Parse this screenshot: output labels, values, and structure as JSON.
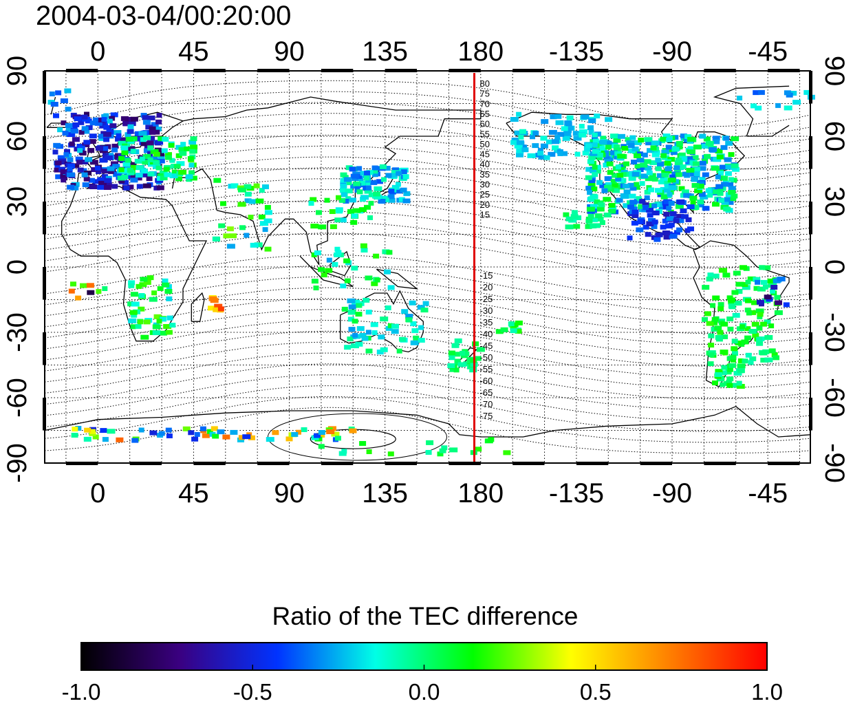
{
  "title": "2004-03-04/00:20:00",
  "colorbar": {
    "label": "Ratio of the TEC difference",
    "ticks": [
      "-1.0",
      "-0.5",
      "0.0",
      "0.5",
      "1.0"
    ],
    "values": [
      -1.0,
      -0.5,
      0.0,
      0.5,
      1.0
    ],
    "colormap": [
      "#000000",
      "#3a0080",
      "#0033ff",
      "#00ffe6",
      "#00ff00",
      "#ffff00",
      "#ff8000",
      "#ff0000"
    ]
  },
  "map": {
    "lon_range": [
      -25,
      335
    ],
    "lat_range": [
      -90,
      90
    ],
    "top_lon_labels": [
      "0",
      "45",
      "90",
      "135",
      "180",
      "-135",
      "-90",
      "-45"
    ],
    "bottom_lon_labels": [
      "0",
      "45",
      "90",
      "135",
      "180",
      "-135",
      "-90",
      "-45"
    ],
    "left_lat_labels": [
      "90",
      "60",
      "30",
      "0",
      "-30",
      "-60",
      "-90"
    ],
    "right_lat_labels": [
      "90",
      "60",
      "30",
      "0",
      "-30",
      "-60",
      "-90"
    ],
    "terminator_line_lon": 177,
    "terminator_color": "#e00000",
    "terminator_labels": [
      "80",
      "75",
      "70",
      "65",
      "60",
      "55",
      "50",
      "45",
      "40",
      "35",
      "30",
      "25",
      "20",
      "15",
      "-15",
      "-20",
      "-25",
      "-30",
      "-35",
      "-40",
      "-45",
      "-50",
      "-55",
      "-60",
      "-65",
      "-70",
      "-75"
    ],
    "grid": true
  }
}
